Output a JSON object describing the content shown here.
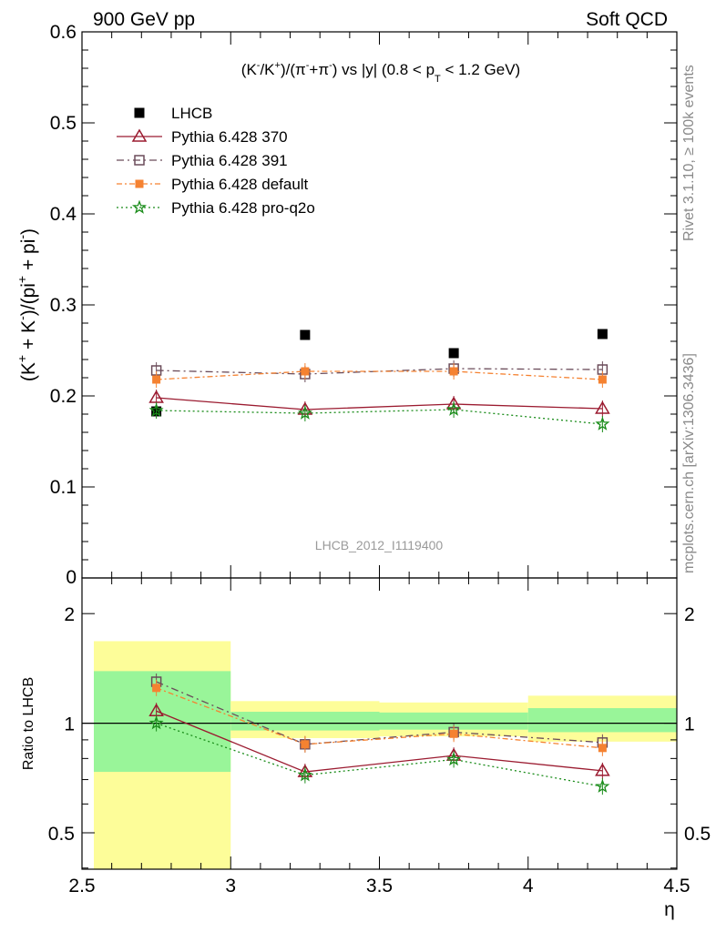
{
  "header": {
    "left": "900 GeV pp",
    "right": "Soft QCD"
  },
  "side": {
    "rivet": "Rivet 3.1.10, ≥ 100k events",
    "mcplots": "mcplots.cern.ch [arXiv:1306.3436]"
  },
  "chart_data": [
    {
      "type": "scatter",
      "panel": "main",
      "title": "(K⁻/K⁺)/(π⁻+π⁻) vs |y| (0.8 < p_T < 1.2 GeV)",
      "title_parts": {
        "prefix": "(K",
        "k_minus": "-",
        "mid1": "/K",
        "k_plus": "+",
        "mid2": ")/(π",
        "pi_minus_a": "-",
        "mid3": "+π",
        "pi_minus_b": "-",
        "mid4": ") vs |y| (0.8 < p",
        "pt_sub": "T",
        "suffix": " < 1.2 GeV)"
      },
      "ylabel": "(K⁺ + K⁻)/(pi⁺ + pi⁻)",
      "ylabel_parts": {
        "a": "(K",
        "a_sup": "+",
        "b": " + K",
        "b_sup": "-",
        "c": ")/(pi",
        "c_sup": "+",
        "d": " + pi",
        "d_sup": "-",
        "e": ")"
      },
      "xlim": [
        2.5,
        4.5
      ],
      "ylim": [
        0,
        0.6
      ],
      "y_ticks": [
        "0.1",
        "0.2",
        "0.3",
        "0.4",
        "0.5",
        "0.6"
      ],
      "y_zero_tick": "0",
      "x": [
        2.75,
        3.25,
        3.75,
        4.25
      ],
      "series": [
        {
          "name": "LHCB",
          "values": [
            0.183,
            0.267,
            0.247,
            0.268
          ],
          "color": "#000000",
          "marker": "filled-square",
          "line": "none"
        },
        {
          "name": "Pythia 6.428 370",
          "values": [
            0.198,
            0.185,
            0.191,
            0.186
          ],
          "color": "#9b1b30",
          "marker": "open-triangle",
          "line": "solid"
        },
        {
          "name": "Pythia 6.428 391",
          "values": [
            0.228,
            0.224,
            0.23,
            0.229
          ],
          "color": "#6b4c5a",
          "marker": "open-square",
          "line": "dash-dot"
        },
        {
          "name": "Pythia 6.428 default",
          "values": [
            0.218,
            0.227,
            0.227,
            0.218
          ],
          "color": "#f58231",
          "marker": "filled-square-small",
          "line": "dash-dot-orange"
        },
        {
          "name": "Pythia 6.428 pro-q2o",
          "values": [
            0.184,
            0.181,
            0.185,
            0.169
          ],
          "color": "#1a8c1a",
          "marker": "star",
          "line": "dotted"
        }
      ],
      "watermark": "LHCB_2012_I1119400",
      "legend": "top-left"
    },
    {
      "type": "line",
      "panel": "ratio",
      "ylabel": "Ratio to LHCB",
      "xlabel": "η",
      "xlim": [
        2.5,
        4.5
      ],
      "x_ticks": [
        "2.5",
        "3",
        "3.5",
        "4",
        "4.5"
      ],
      "y_ticks": [
        "0.5",
        "1",
        "2"
      ],
      "bins": [
        {
          "lo": 2.5,
          "hi": 3.0,
          "inner": [
            0.735,
            1.39
          ],
          "outer": [
            0.35,
            1.68
          ]
        },
        {
          "lo": 3.0,
          "hi": 3.5,
          "inner": [
            0.955,
            1.075
          ],
          "outer": [
            0.91,
            1.15
          ]
        },
        {
          "lo": 3.5,
          "hi": 4.0,
          "inner": [
            0.96,
            1.07
          ],
          "outer": [
            0.92,
            1.14
          ]
        },
        {
          "lo": 4.0,
          "hi": 4.5,
          "inner": [
            0.945,
            1.1
          ],
          "outer": [
            0.89,
            1.19
          ]
        }
      ],
      "x": [
        2.75,
        3.25,
        3.75,
        4.25
      ],
      "series": [
        {
          "name": "Pythia 6.428 370",
          "values": [
            1.08,
            0.735,
            0.815,
            0.74
          ],
          "color": "#9b1b30"
        },
        {
          "name": "Pythia 6.428 391",
          "values": [
            1.3,
            0.875,
            0.945,
            0.885
          ],
          "color": "#6b4c5a"
        },
        {
          "name": "Pythia 6.428 default",
          "values": [
            1.25,
            0.875,
            0.935,
            0.855
          ],
          "color": "#f58231"
        },
        {
          "name": "Pythia 6.428 pro-q2o",
          "values": [
            1.0,
            0.72,
            0.795,
            0.67
          ],
          "color": "#1a8c1a"
        }
      ],
      "band_colors": {
        "inner": "#99f599",
        "outer": "#fdfd99"
      }
    }
  ]
}
